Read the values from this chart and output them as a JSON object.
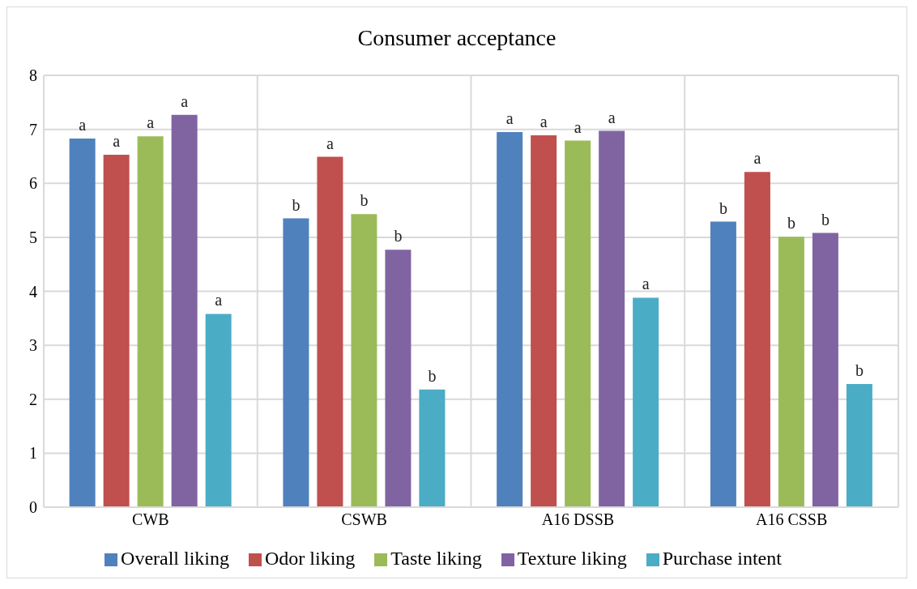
{
  "chart_data": {
    "type": "bar",
    "title": "Consumer acceptance",
    "categories": [
      "CWB",
      "CSWB",
      "A16 DSSB",
      "A16 CSSB"
    ],
    "series": [
      {
        "name": "Overall liking",
        "color": "#4f81bd",
        "values": [
          6.83,
          5.35,
          6.95,
          5.29
        ],
        "value_labels": [
          "a",
          "b",
          "a",
          "b"
        ]
      },
      {
        "name": "Odor liking",
        "color": "#c0504d",
        "values": [
          6.53,
          6.49,
          6.89,
          6.21
        ],
        "value_labels": [
          "a",
          "a",
          "a",
          "a"
        ]
      },
      {
        "name": "Taste liking",
        "color": "#9bbb59",
        "values": [
          6.87,
          5.43,
          6.79,
          5.01
        ],
        "value_labels": [
          "a",
          "b",
          "a",
          "b"
        ]
      },
      {
        "name": "Texture liking",
        "color": "#8064a2",
        "values": [
          7.27,
          4.77,
          6.97,
          5.08
        ],
        "value_labels": [
          "a",
          "b",
          "a",
          "b"
        ]
      },
      {
        "name": "Purchase intent",
        "color": "#4bacc6",
        "values": [
          3.58,
          2.18,
          3.88,
          2.28
        ],
        "value_labels": [
          "a",
          "b",
          "a",
          "b"
        ]
      }
    ],
    "ylim": [
      0,
      8
    ],
    "yticks": [
      0,
      1,
      2,
      3,
      4,
      5,
      6,
      7,
      8
    ],
    "grid": true,
    "legend": "bottom"
  }
}
